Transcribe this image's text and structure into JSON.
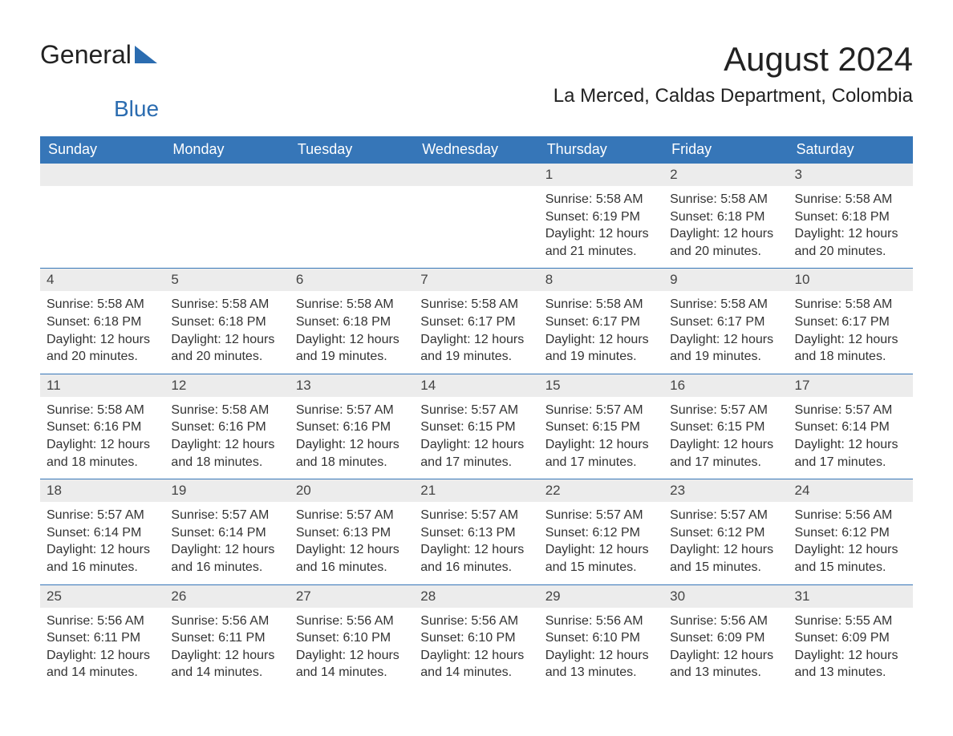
{
  "logo": {
    "text_general": "General",
    "text_blue": "Blue",
    "triangle_color": "#2b6cb0"
  },
  "header": {
    "month_title": "August 2024",
    "location": "La Merced, Caldas Department, Colombia"
  },
  "calendar": {
    "header_bg_color": "#3676b8",
    "header_text_color": "#ffffff",
    "daynum_bg_color": "#ececec",
    "daynum_border_color": "#3676b8",
    "day_text_color": "#333333",
    "columns": [
      "Sunday",
      "Monday",
      "Tuesday",
      "Wednesday",
      "Thursday",
      "Friday",
      "Saturday"
    ],
    "weeks": [
      [
        {
          "empty": true
        },
        {
          "empty": true
        },
        {
          "empty": true
        },
        {
          "empty": true
        },
        {
          "day": "1",
          "sunrise": "Sunrise: 5:58 AM",
          "sunset": "Sunset: 6:19 PM",
          "daylight": "Daylight: 12 hours and 21 minutes."
        },
        {
          "day": "2",
          "sunrise": "Sunrise: 5:58 AM",
          "sunset": "Sunset: 6:18 PM",
          "daylight": "Daylight: 12 hours and 20 minutes."
        },
        {
          "day": "3",
          "sunrise": "Sunrise: 5:58 AM",
          "sunset": "Sunset: 6:18 PM",
          "daylight": "Daylight: 12 hours and 20 minutes."
        }
      ],
      [
        {
          "day": "4",
          "sunrise": "Sunrise: 5:58 AM",
          "sunset": "Sunset: 6:18 PM",
          "daylight": "Daylight: 12 hours and 20 minutes."
        },
        {
          "day": "5",
          "sunrise": "Sunrise: 5:58 AM",
          "sunset": "Sunset: 6:18 PM",
          "daylight": "Daylight: 12 hours and 20 minutes."
        },
        {
          "day": "6",
          "sunrise": "Sunrise: 5:58 AM",
          "sunset": "Sunset: 6:18 PM",
          "daylight": "Daylight: 12 hours and 19 minutes."
        },
        {
          "day": "7",
          "sunrise": "Sunrise: 5:58 AM",
          "sunset": "Sunset: 6:17 PM",
          "daylight": "Daylight: 12 hours and 19 minutes."
        },
        {
          "day": "8",
          "sunrise": "Sunrise: 5:58 AM",
          "sunset": "Sunset: 6:17 PM",
          "daylight": "Daylight: 12 hours and 19 minutes."
        },
        {
          "day": "9",
          "sunrise": "Sunrise: 5:58 AM",
          "sunset": "Sunset: 6:17 PM",
          "daylight": "Daylight: 12 hours and 19 minutes."
        },
        {
          "day": "10",
          "sunrise": "Sunrise: 5:58 AM",
          "sunset": "Sunset: 6:17 PM",
          "daylight": "Daylight: 12 hours and 18 minutes."
        }
      ],
      [
        {
          "day": "11",
          "sunrise": "Sunrise: 5:58 AM",
          "sunset": "Sunset: 6:16 PM",
          "daylight": "Daylight: 12 hours and 18 minutes."
        },
        {
          "day": "12",
          "sunrise": "Sunrise: 5:58 AM",
          "sunset": "Sunset: 6:16 PM",
          "daylight": "Daylight: 12 hours and 18 minutes."
        },
        {
          "day": "13",
          "sunrise": "Sunrise: 5:57 AM",
          "sunset": "Sunset: 6:16 PM",
          "daylight": "Daylight: 12 hours and 18 minutes."
        },
        {
          "day": "14",
          "sunrise": "Sunrise: 5:57 AM",
          "sunset": "Sunset: 6:15 PM",
          "daylight": "Daylight: 12 hours and 17 minutes."
        },
        {
          "day": "15",
          "sunrise": "Sunrise: 5:57 AM",
          "sunset": "Sunset: 6:15 PM",
          "daylight": "Daylight: 12 hours and 17 minutes."
        },
        {
          "day": "16",
          "sunrise": "Sunrise: 5:57 AM",
          "sunset": "Sunset: 6:15 PM",
          "daylight": "Daylight: 12 hours and 17 minutes."
        },
        {
          "day": "17",
          "sunrise": "Sunrise: 5:57 AM",
          "sunset": "Sunset: 6:14 PM",
          "daylight": "Daylight: 12 hours and 17 minutes."
        }
      ],
      [
        {
          "day": "18",
          "sunrise": "Sunrise: 5:57 AM",
          "sunset": "Sunset: 6:14 PM",
          "daylight": "Daylight: 12 hours and 16 minutes."
        },
        {
          "day": "19",
          "sunrise": "Sunrise: 5:57 AM",
          "sunset": "Sunset: 6:14 PM",
          "daylight": "Daylight: 12 hours and 16 minutes."
        },
        {
          "day": "20",
          "sunrise": "Sunrise: 5:57 AM",
          "sunset": "Sunset: 6:13 PM",
          "daylight": "Daylight: 12 hours and 16 minutes."
        },
        {
          "day": "21",
          "sunrise": "Sunrise: 5:57 AM",
          "sunset": "Sunset: 6:13 PM",
          "daylight": "Daylight: 12 hours and 16 minutes."
        },
        {
          "day": "22",
          "sunrise": "Sunrise: 5:57 AM",
          "sunset": "Sunset: 6:12 PM",
          "daylight": "Daylight: 12 hours and 15 minutes."
        },
        {
          "day": "23",
          "sunrise": "Sunrise: 5:57 AM",
          "sunset": "Sunset: 6:12 PM",
          "daylight": "Daylight: 12 hours and 15 minutes."
        },
        {
          "day": "24",
          "sunrise": "Sunrise: 5:56 AM",
          "sunset": "Sunset: 6:12 PM",
          "daylight": "Daylight: 12 hours and 15 minutes."
        }
      ],
      [
        {
          "day": "25",
          "sunrise": "Sunrise: 5:56 AM",
          "sunset": "Sunset: 6:11 PM",
          "daylight": "Daylight: 12 hours and 14 minutes."
        },
        {
          "day": "26",
          "sunrise": "Sunrise: 5:56 AM",
          "sunset": "Sunset: 6:11 PM",
          "daylight": "Daylight: 12 hours and 14 minutes."
        },
        {
          "day": "27",
          "sunrise": "Sunrise: 5:56 AM",
          "sunset": "Sunset: 6:10 PM",
          "daylight": "Daylight: 12 hours and 14 minutes."
        },
        {
          "day": "28",
          "sunrise": "Sunrise: 5:56 AM",
          "sunset": "Sunset: 6:10 PM",
          "daylight": "Daylight: 12 hours and 14 minutes."
        },
        {
          "day": "29",
          "sunrise": "Sunrise: 5:56 AM",
          "sunset": "Sunset: 6:10 PM",
          "daylight": "Daylight: 12 hours and 13 minutes."
        },
        {
          "day": "30",
          "sunrise": "Sunrise: 5:56 AM",
          "sunset": "Sunset: 6:09 PM",
          "daylight": "Daylight: 12 hours and 13 minutes."
        },
        {
          "day": "31",
          "sunrise": "Sunrise: 5:55 AM",
          "sunset": "Sunset: 6:09 PM",
          "daylight": "Daylight: 12 hours and 13 minutes."
        }
      ]
    ]
  }
}
